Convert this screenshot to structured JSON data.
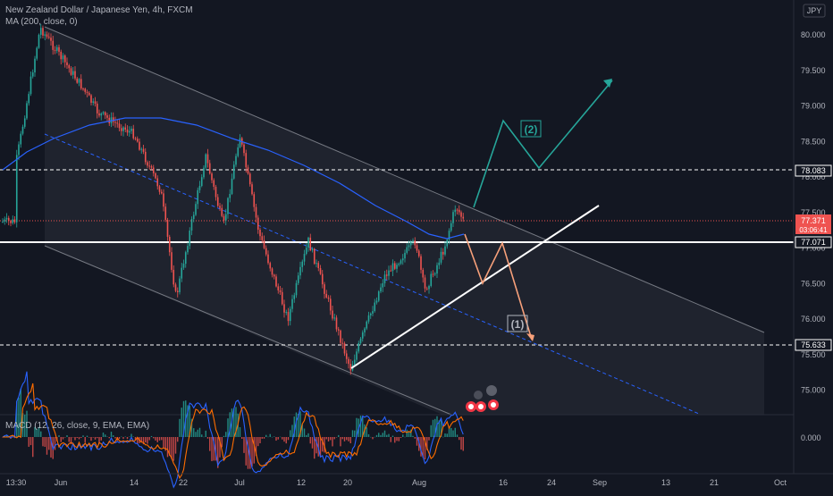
{
  "header": {
    "title": "New Zealand Dollar / Japanese Yen, 4h, FXCM",
    "ma_label": "MA (200, close, 0)",
    "currency": "JPY"
  },
  "macd": {
    "label": "MACD (12, 26, close, 9, EMA, EMA)",
    "zero_label": "0.000"
  },
  "labels": {
    "wave1": "(1)",
    "wave2": "(2)"
  },
  "price_tags": {
    "last_price": "77.371",
    "countdown": "03:06:41",
    "res_upper": "78.083",
    "res_mid": "77.071",
    "support": "75.633"
  },
  "colors": {
    "background": "#131722",
    "up": "#26a69a",
    "down": "#ef5350",
    "ma": "#2962ff",
    "projection_up": "#26a69a",
    "projection_down": "#f7a07a",
    "channel": "#b2b5be",
    "macd_line": "#2962ff",
    "signal_line": "#ff6d00"
  },
  "chart_data": [
    {
      "type": "candlestick",
      "title": "New Zealand Dollar / Japanese Yen, 4h, FXCM",
      "y_axis": {
        "side": "right",
        "ticks": [
          "80.000",
          "79.500",
          "79.000",
          "78.500",
          "78.000",
          "77.500",
          "77.000",
          "76.500",
          "76.000",
          "75.500",
          "75.000"
        ],
        "range": [
          74.65,
          80.35
        ]
      },
      "x_axis": {
        "ticks": [
          "13:30",
          "Jun",
          "14",
          "22",
          "Jul",
          "12",
          "20",
          "Aug",
          "16",
          "24",
          "Sep",
          "13",
          "21",
          "Oct"
        ]
      },
      "grid": false,
      "series": [
        {
          "type": "candles",
          "approx_path": [
            [
              "May 28",
              78.2
            ],
            [
              "May 30",
              80.1
            ],
            [
              "Jun 4",
              79.3
            ],
            [
              "Jun 8",
              78.9
            ],
            [
              "Jun 14",
              78.6
            ],
            [
              "Jun 19",
              77.8
            ],
            [
              "Jun 22",
              76.3
            ],
            [
              "Jun 27",
              78.3
            ],
            [
              "Jul 2",
              77.3
            ],
            [
              "Jul 5",
              78.6
            ],
            [
              "Jul 9",
              77.2
            ],
            [
              "Jul 12",
              76.0
            ],
            [
              "Jul 16",
              77.1
            ],
            [
              "Jul 20",
              75.3
            ],
            [
              "Jul 25",
              76.6
            ],
            [
              "Jul 29",
              77.1
            ],
            [
              "Aug 3",
              76.4
            ],
            [
              "Aug 6",
              76.7
            ],
            [
              "Aug 9",
              77.0
            ],
            [
              "Aug 12",
              77.6
            ],
            [
              "Aug 14",
              77.37
            ]
          ]
        },
        {
          "name": "MA (200, close, 0)",
          "type": "line"
        }
      ],
      "horizontal_levels": [
        78.083,
        77.071,
        75.633
      ],
      "last_price": 77.371,
      "annotations": [
        "(1)",
        "(2)"
      ]
    },
    {
      "type": "bar",
      "title": "MACD (12, 26, close, 9, EMA, EMA)",
      "y_axis": {
        "ticks": [
          "0.000"
        ]
      },
      "series": [
        {
          "name": "histogram",
          "type": "bar"
        },
        {
          "name": "MACD",
          "type": "line"
        },
        {
          "name": "signal",
          "type": "line"
        }
      ]
    }
  ]
}
